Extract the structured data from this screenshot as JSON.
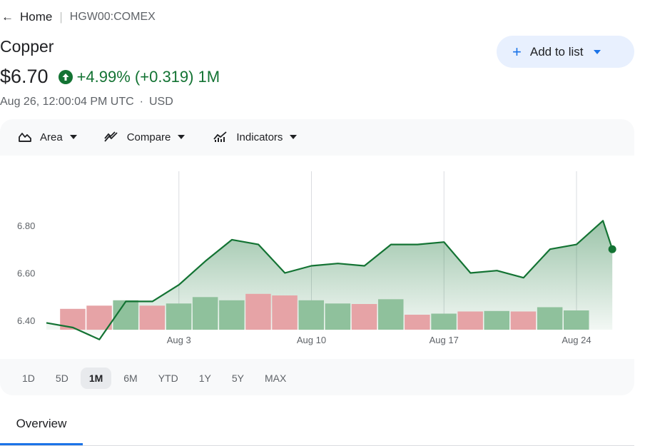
{
  "breadcrumb": {
    "home": "Home",
    "symbol": "HGW00:COMEX"
  },
  "title": "Copper",
  "price": "$6.70",
  "change": "+4.99% (+0.319)",
  "change_period": "1M",
  "timestamp": "Aug 26, 12:00:04 PM UTC",
  "currency": "USD",
  "add_to_list": "Add to list",
  "toolbar": {
    "area": "Area",
    "compare": "Compare",
    "indicators": "Indicators"
  },
  "ranges": [
    "1D",
    "5D",
    "1M",
    "6M",
    "YTD",
    "1Y",
    "5Y",
    "MAX"
  ],
  "active_range": "1M",
  "tabs": {
    "overview": "Overview"
  },
  "colors": {
    "up": "#137333",
    "accent": "#1a73e8",
    "vol_up": "#8fc19c",
    "vol_down": "#e6a3a6"
  },
  "icons": [
    "arrow-back-icon",
    "arrow-up-circle-icon",
    "plus-icon",
    "area-chart-icon",
    "compare-icon",
    "indicators-icon"
  ],
  "chart_data": {
    "type": "area",
    "ylim": [
      6.31,
      6.89
    ],
    "yticks": [
      6.4,
      6.6,
      6.8
    ],
    "ytick_labels": [
      "6.40",
      "6.60",
      "6.80"
    ],
    "x_labels": [
      "Aug 3",
      "Aug 10",
      "Aug 17",
      "Aug 24"
    ],
    "x_label_days": [
      5,
      10,
      15,
      20
    ],
    "points": [
      {
        "day": 0,
        "value": 6.39
      },
      {
        "day": 1,
        "value": 6.37
      },
      {
        "day": 2,
        "value": 6.32
      },
      {
        "day": 3,
        "value": 6.48
      },
      {
        "day": 4,
        "value": 6.48
      },
      {
        "day": 5,
        "value": 6.55
      },
      {
        "day": 6,
        "value": 6.65
      },
      {
        "day": 7,
        "value": 6.74
      },
      {
        "day": 8,
        "value": 6.72
      },
      {
        "day": 9,
        "value": 6.6
      },
      {
        "day": 10,
        "value": 6.63
      },
      {
        "day": 11,
        "value": 6.64
      },
      {
        "day": 12,
        "value": 6.63
      },
      {
        "day": 13,
        "value": 6.72
      },
      {
        "day": 14,
        "value": 6.72
      },
      {
        "day": 15,
        "value": 6.73
      },
      {
        "day": 16,
        "value": 6.6
      },
      {
        "day": 17,
        "value": 6.61
      },
      {
        "day": 18,
        "value": 6.58
      },
      {
        "day": 19,
        "value": 6.7
      },
      {
        "day": 20,
        "value": 6.72
      },
      {
        "day": 21,
        "value": 6.82
      },
      {
        "day": 21.35,
        "value": 6.7
      }
    ],
    "volume": [
      {
        "day": 1,
        "value": 0.39,
        "dir": "down"
      },
      {
        "day": 2,
        "value": 0.45,
        "dir": "down"
      },
      {
        "day": 3,
        "value": 0.55,
        "dir": "up"
      },
      {
        "day": 4,
        "value": 0.45,
        "dir": "down"
      },
      {
        "day": 5,
        "value": 0.49,
        "dir": "up"
      },
      {
        "day": 6,
        "value": 0.61,
        "dir": "up"
      },
      {
        "day": 7,
        "value": 0.55,
        "dir": "up"
      },
      {
        "day": 8,
        "value": 0.67,
        "dir": "down"
      },
      {
        "day": 9,
        "value": 0.64,
        "dir": "down"
      },
      {
        "day": 10,
        "value": 0.55,
        "dir": "up"
      },
      {
        "day": 11,
        "value": 0.49,
        "dir": "up"
      },
      {
        "day": 12,
        "value": 0.48,
        "dir": "down"
      },
      {
        "day": 13,
        "value": 0.57,
        "dir": "up"
      },
      {
        "day": 14,
        "value": 0.28,
        "dir": "down"
      },
      {
        "day": 15,
        "value": 0.3,
        "dir": "up"
      },
      {
        "day": 16,
        "value": 0.34,
        "dir": "down"
      },
      {
        "day": 17,
        "value": 0.35,
        "dir": "up"
      },
      {
        "day": 18,
        "value": 0.34,
        "dir": "down"
      },
      {
        "day": 19,
        "value": 0.42,
        "dir": "up"
      },
      {
        "day": 20,
        "value": 0.36,
        "dir": "up"
      }
    ]
  }
}
